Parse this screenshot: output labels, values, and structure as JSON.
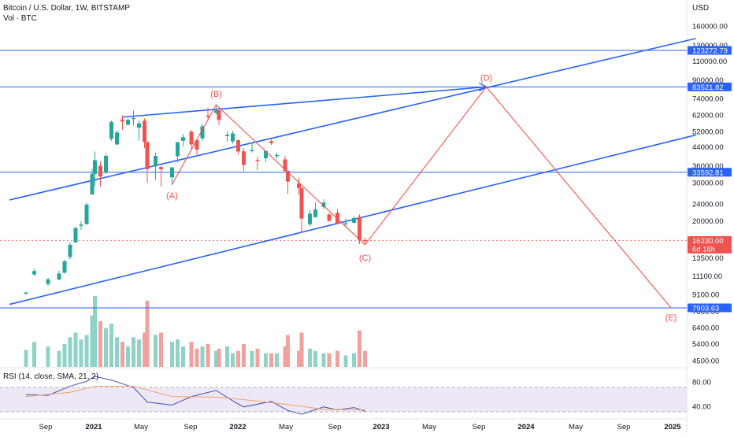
{
  "header": {
    "title": "Bitcoin / U.S. Dollar, 1W, BITSTAMP",
    "volume_label": "Vol · BTC",
    "currency": "USD",
    "rsi_label": "RSI (14, close, SMA, 21, 2)"
  },
  "colors": {
    "up": "#26a69a",
    "down": "#ef5350",
    "line": "#2962ff",
    "wave": "#f05350",
    "rsi": "#3f51b5",
    "rsi_ma": "#f0a36a"
  },
  "price_axis": {
    "ticks": [
      "160000.00",
      "130000.00",
      "110000.00",
      "90000.00",
      "74000.00",
      "62000.00",
      "52000.00",
      "44000.00",
      "36000.00",
      "30000.00",
      "24000.00",
      "20000.00",
      "13500.00",
      "11100.00",
      "9100.00",
      "7600.00",
      "6400.00",
      "5400.00",
      "4500.00"
    ],
    "scale": "log"
  },
  "rsi_axis": {
    "ticks": [
      "80.00",
      "40.00"
    ],
    "levels": [
      70,
      30
    ]
  },
  "time_axis": {
    "labels": [
      "Sep",
      "2021",
      "May",
      "Sep",
      "2022",
      "May",
      "Sep",
      "2023",
      "May",
      "Sep",
      "2024",
      "May",
      "Sep",
      "2025"
    ]
  },
  "levels": [
    {
      "label": "123272.79",
      "value": 123272.79
    },
    {
      "label": "83521.82",
      "value": 83521.82
    },
    {
      "label": "33592.81",
      "value": 33592.81
    },
    {
      "label": "7903.63",
      "value": 7903.63
    }
  ],
  "last_price": {
    "label": "16230.00",
    "countdown": "6d 16h",
    "value": 16230
  },
  "waves": [
    {
      "label": "(A)",
      "date": "2021-07-19",
      "price": 29500
    },
    {
      "label": "(B)",
      "date": "2021-11-08",
      "price": 69000
    },
    {
      "label": "(C)",
      "date": "2022-11-21",
      "price": 15500
    },
    {
      "label": "(D)",
      "date": "2023-09-25",
      "price": 83521.82
    },
    {
      "label": "(E)",
      "date": "2025-01-06",
      "price": 7903.63
    }
  ],
  "chart_data": {
    "type": "candlestick",
    "symbol": "BTCUSD",
    "interval": "1W",
    "exchange": "BITSTAMP",
    "y_scale": "log",
    "ylim": [
      4200,
      180000
    ],
    "x_range": [
      "2020-07-13",
      "2025-02-24"
    ],
    "candles": [
      {
        "date": "2020-07-13",
        "o": 9200,
        "h": 9400,
        "l": 9100,
        "c": 9300
      },
      {
        "date": "2020-08-03",
        "o": 11300,
        "h": 12000,
        "l": 11100,
        "c": 11700
      },
      {
        "date": "2020-09-07",
        "o": 10200,
        "h": 10900,
        "l": 10000,
        "c": 10700
      },
      {
        "date": "2020-10-05",
        "o": 10700,
        "h": 11700,
        "l": 10600,
        "c": 11400
      },
      {
        "date": "2020-10-19",
        "o": 11500,
        "h": 13200,
        "l": 11400,
        "c": 13000
      },
      {
        "date": "2020-11-02",
        "o": 13600,
        "h": 15900,
        "l": 13300,
        "c": 15500
      },
      {
        "date": "2020-11-16",
        "o": 15900,
        "h": 18800,
        "l": 15800,
        "c": 18500
      },
      {
        "date": "2020-11-30",
        "o": 19000,
        "h": 19900,
        "l": 18200,
        "c": 19200
      },
      {
        "date": "2020-12-14",
        "o": 19300,
        "h": 24200,
        "l": 19200,
        "c": 23800
      },
      {
        "date": "2020-12-28",
        "o": 26500,
        "h": 34800,
        "l": 26400,
        "c": 33000
      },
      {
        "date": "2021-01-04",
        "o": 33000,
        "h": 41900,
        "l": 29000,
        "c": 38200
      },
      {
        "date": "2021-01-18",
        "o": 36000,
        "h": 37800,
        "l": 28800,
        "c": 32100
      },
      {
        "date": "2021-02-01",
        "o": 33500,
        "h": 41000,
        "l": 33000,
        "c": 40000
      },
      {
        "date": "2021-02-15",
        "o": 48000,
        "h": 58300,
        "l": 47000,
        "c": 57400
      },
      {
        "date": "2021-03-01",
        "o": 45200,
        "h": 52700,
        "l": 44900,
        "c": 51300
      },
      {
        "date": "2021-03-15",
        "o": 59000,
        "h": 61800,
        "l": 52900,
        "c": 57700
      },
      {
        "date": "2021-03-29",
        "o": 55800,
        "h": 59800,
        "l": 55500,
        "c": 58800
      },
      {
        "date": "2021-04-12",
        "o": 59800,
        "h": 64900,
        "l": 55400,
        "c": 60000
      },
      {
        "date": "2021-04-26",
        "o": 54100,
        "h": 58500,
        "l": 47000,
        "c": 56600
      },
      {
        "date": "2021-05-10",
        "o": 58200,
        "h": 59600,
        "l": 43500,
        "c": 46400
      },
      {
        "date": "2021-05-17",
        "o": 46400,
        "h": 46600,
        "l": 30000,
        "c": 34700
      },
      {
        "date": "2021-06-07",
        "o": 35800,
        "h": 41300,
        "l": 31000,
        "c": 40000
      },
      {
        "date": "2021-06-21",
        "o": 35500,
        "h": 36000,
        "l": 28800,
        "c": 34700
      },
      {
        "date": "2021-07-19",
        "o": 31800,
        "h": 35400,
        "l": 29300,
        "c": 35400
      },
      {
        "date": "2021-08-02",
        "o": 39900,
        "h": 46300,
        "l": 37300,
        "c": 46300
      },
      {
        "date": "2021-08-16",
        "o": 47000,
        "h": 50500,
        "l": 44300,
        "c": 48800
      },
      {
        "date": "2021-09-06",
        "o": 51800,
        "h": 52900,
        "l": 42800,
        "c": 45200
      },
      {
        "date": "2021-09-20",
        "o": 47300,
        "h": 47300,
        "l": 40600,
        "c": 42800
      },
      {
        "date": "2021-10-04",
        "o": 48200,
        "h": 56500,
        "l": 47000,
        "c": 54900
      },
      {
        "date": "2021-10-18",
        "o": 61500,
        "h": 67000,
        "l": 59600,
        "c": 61000
      },
      {
        "date": "2021-11-08",
        "o": 63300,
        "h": 69000,
        "l": 62300,
        "c": 65000
      },
      {
        "date": "2021-11-15",
        "o": 65000,
        "h": 66300,
        "l": 55600,
        "c": 58700
      },
      {
        "date": "2021-12-06",
        "o": 49400,
        "h": 51900,
        "l": 46700,
        "c": 50100
      },
      {
        "date": "2021-12-20",
        "o": 46700,
        "h": 52100,
        "l": 45600,
        "c": 50800
      },
      {
        "date": "2022-01-03",
        "o": 47300,
        "h": 47500,
        "l": 40600,
        "c": 41900
      },
      {
        "date": "2022-01-17",
        "o": 42000,
        "h": 43500,
        "l": 34000,
        "c": 36300
      },
      {
        "date": "2022-02-07",
        "o": 42400,
        "h": 45800,
        "l": 41500,
        "c": 42600
      },
      {
        "date": "2022-02-21",
        "o": 38300,
        "h": 39800,
        "l": 34300,
        "c": 38000
      },
      {
        "date": "2022-03-14",
        "o": 39000,
        "h": 42300,
        "l": 37500,
        "c": 42200
      },
      {
        "date": "2022-03-28",
        "o": 46800,
        "h": 48200,
        "l": 45000,
        "c": 45800
      },
      {
        "date": "2022-04-11",
        "o": 40000,
        "h": 41500,
        "l": 38700,
        "c": 40400
      },
      {
        "date": "2022-05-02",
        "o": 38500,
        "h": 40000,
        "l": 33700,
        "c": 34100
      },
      {
        "date": "2022-05-09",
        "o": 34100,
        "h": 34200,
        "l": 26700,
        "c": 30400
      },
      {
        "date": "2022-06-06",
        "o": 29800,
        "h": 31700,
        "l": 26500,
        "c": 28400
      },
      {
        "date": "2022-06-13",
        "o": 28400,
        "h": 28500,
        "l": 17600,
        "c": 20500
      },
      {
        "date": "2022-07-04",
        "o": 19300,
        "h": 22500,
        "l": 18900,
        "c": 21600
      },
      {
        "date": "2022-07-18",
        "o": 20800,
        "h": 24300,
        "l": 20800,
        "c": 22600
      },
      {
        "date": "2022-08-08",
        "o": 23200,
        "h": 25200,
        "l": 22700,
        "c": 24300
      },
      {
        "date": "2022-08-22",
        "o": 21400,
        "h": 21800,
        "l": 19800,
        "c": 20000
      },
      {
        "date": "2022-09-12",
        "o": 21800,
        "h": 22700,
        "l": 19300,
        "c": 19400
      },
      {
        "date": "2022-10-03",
        "o": 19400,
        "h": 20500,
        "l": 19000,
        "c": 19500
      },
      {
        "date": "2022-10-24",
        "o": 19600,
        "h": 21000,
        "l": 19500,
        "c": 20600
      },
      {
        "date": "2022-11-07",
        "o": 20900,
        "h": 21400,
        "l": 15600,
        "c": 16300
      },
      {
        "date": "2022-11-21",
        "o": 16300,
        "h": 16700,
        "l": 15600,
        "c": 16230
      }
    ],
    "volume": [
      {
        "date": "2020-07-13",
        "v": 15
      },
      {
        "date": "2020-08-03",
        "v": 22
      },
      {
        "date": "2020-09-07",
        "v": 18
      },
      {
        "date": "2020-10-05",
        "v": 14
      },
      {
        "date": "2020-10-19",
        "v": 20
      },
      {
        "date": "2020-11-02",
        "v": 26
      },
      {
        "date": "2020-11-16",
        "v": 30
      },
      {
        "date": "2020-11-30",
        "v": 24
      },
      {
        "date": "2020-12-14",
        "v": 28
      },
      {
        "date": "2020-12-28",
        "v": 45
      },
      {
        "date": "2021-01-04",
        "v": 62
      },
      {
        "date": "2021-01-18",
        "v": 40
      },
      {
        "date": "2021-02-01",
        "v": 34
      },
      {
        "date": "2021-02-15",
        "v": 38
      },
      {
        "date": "2021-03-01",
        "v": 26
      },
      {
        "date": "2021-03-15",
        "v": 22
      },
      {
        "date": "2021-03-29",
        "v": 18
      },
      {
        "date": "2021-04-12",
        "v": 26
      },
      {
        "date": "2021-04-26",
        "v": 24
      },
      {
        "date": "2021-05-10",
        "v": 30
      },
      {
        "date": "2021-05-17",
        "v": 58
      },
      {
        "date": "2021-06-07",
        "v": 28
      },
      {
        "date": "2021-06-21",
        "v": 30
      },
      {
        "date": "2021-07-19",
        "v": 22
      },
      {
        "date": "2021-08-02",
        "v": 24
      },
      {
        "date": "2021-08-16",
        "v": 18
      },
      {
        "date": "2021-09-06",
        "v": 22
      },
      {
        "date": "2021-09-20",
        "v": 16
      },
      {
        "date": "2021-10-04",
        "v": 18
      },
      {
        "date": "2021-10-18",
        "v": 20
      },
      {
        "date": "2021-11-08",
        "v": 14
      },
      {
        "date": "2021-11-15",
        "v": 16
      },
      {
        "date": "2021-12-06",
        "v": 18
      },
      {
        "date": "2021-12-20",
        "v": 12
      },
      {
        "date": "2022-01-03",
        "v": 14
      },
      {
        "date": "2022-01-17",
        "v": 20
      },
      {
        "date": "2022-02-07",
        "v": 14
      },
      {
        "date": "2022-02-21",
        "v": 16
      },
      {
        "date": "2022-03-14",
        "v": 12
      },
      {
        "date": "2022-03-28",
        "v": 12
      },
      {
        "date": "2022-04-11",
        "v": 12
      },
      {
        "date": "2022-05-02",
        "v": 18
      },
      {
        "date": "2022-05-09",
        "v": 28
      },
      {
        "date": "2022-06-06",
        "v": 14
      },
      {
        "date": "2022-06-13",
        "v": 30
      },
      {
        "date": "2022-07-04",
        "v": 16
      },
      {
        "date": "2022-07-18",
        "v": 14
      },
      {
        "date": "2022-08-08",
        "v": 12
      },
      {
        "date": "2022-08-22",
        "v": 12
      },
      {
        "date": "2022-09-12",
        "v": 14
      },
      {
        "date": "2022-10-03",
        "v": 10
      },
      {
        "date": "2022-10-24",
        "v": 12
      },
      {
        "date": "2022-11-07",
        "v": 32
      },
      {
        "date": "2022-11-21",
        "v": 14
      }
    ],
    "rsi": [
      {
        "date": "2020-07-13",
        "rsi": 58
      },
      {
        "date": "2020-09-07",
        "rsi": 57
      },
      {
        "date": "2020-11-02",
        "rsi": 72
      },
      {
        "date": "2020-12-14",
        "rsi": 80
      },
      {
        "date": "2021-01-04",
        "rsi": 88
      },
      {
        "date": "2021-02-15",
        "rsi": 82
      },
      {
        "date": "2021-04-12",
        "rsi": 70
      },
      {
        "date": "2021-05-17",
        "rsi": 46
      },
      {
        "date": "2021-07-19",
        "rsi": 41
      },
      {
        "date": "2021-09-06",
        "rsi": 55
      },
      {
        "date": "2021-11-08",
        "rsi": 65
      },
      {
        "date": "2021-12-20",
        "rsi": 48
      },
      {
        "date": "2022-01-17",
        "rsi": 38
      },
      {
        "date": "2022-03-28",
        "rsi": 47
      },
      {
        "date": "2022-05-09",
        "rsi": 32
      },
      {
        "date": "2022-06-13",
        "rsi": 26
      },
      {
        "date": "2022-08-08",
        "rsi": 38
      },
      {
        "date": "2022-09-12",
        "rsi": 33
      },
      {
        "date": "2022-10-24",
        "rsi": 37
      },
      {
        "date": "2022-11-21",
        "rsi": 31
      }
    ],
    "rsi_ma": [
      {
        "date": "2020-07-13",
        "v": 55
      },
      {
        "date": "2020-11-02",
        "v": 62
      },
      {
        "date": "2021-01-04",
        "v": 72
      },
      {
        "date": "2021-04-12",
        "v": 72
      },
      {
        "date": "2021-07-19",
        "v": 55
      },
      {
        "date": "2021-11-08",
        "v": 54
      },
      {
        "date": "2022-01-17",
        "v": 50
      },
      {
        "date": "2022-05-09",
        "v": 42
      },
      {
        "date": "2022-08-08",
        "v": 34
      },
      {
        "date": "2022-11-21",
        "v": 33
      }
    ],
    "trendlines": [
      {
        "from": {
          "date": "2020-06-01",
          "price": 25000
        },
        "to": {
          "date": "2025-03-10",
          "price": 140000
        }
      },
      {
        "from": {
          "date": "2020-06-01",
          "price": 8200
        },
        "to": {
          "date": "2025-03-10",
          "price": 50000
        }
      },
      {
        "from": {
          "date": "2021-03-15",
          "price": 60500
        },
        "to": {
          "date": "2023-09-25",
          "price": 83521.82
        }
      }
    ]
  }
}
